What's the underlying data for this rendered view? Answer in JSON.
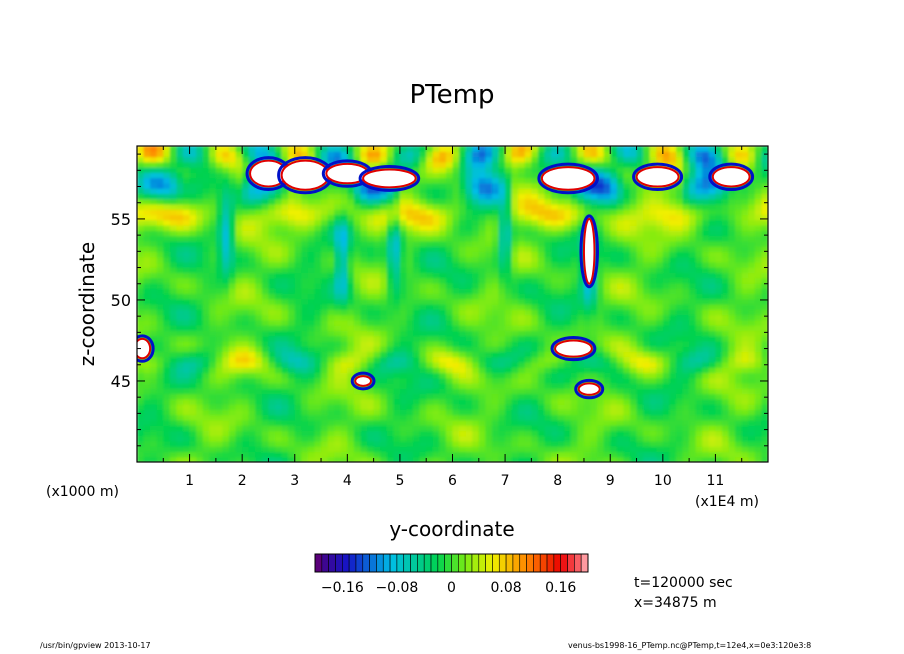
{
  "chart_data": {
    "type": "heatmap",
    "title": "PTemp",
    "xlabel": "y-coordinate",
    "ylabel": "z-coordinate",
    "x_unit_left": "(x1000 m)",
    "x_unit_right": "(x1E4 m)",
    "xlim": [
      0,
      12
    ],
    "ylim": [
      40,
      59.5
    ],
    "x_ticks": [
      "1",
      "2",
      "3",
      "4",
      "5",
      "6",
      "7",
      "8",
      "9",
      "10",
      "11"
    ],
    "y_ticks": [
      "45",
      "50",
      "55"
    ],
    "colorbar": {
      "range": [
        -0.2,
        0.2
      ],
      "tick_labels": [
        "−0.16",
        "−0.08",
        "0",
        "0.08",
        "0.16"
      ],
      "tick_values": [
        -0.16,
        -0.08,
        0,
        0.08,
        0.16
      ],
      "undershoot_color": "#5a007a",
      "overshoot_color": "#ff9aa0"
    },
    "features": [
      {
        "type": "white",
        "x": 2.5,
        "z": 57.8,
        "rx": 0.35,
        "rz": 0.8
      },
      {
        "type": "white",
        "x": 3.2,
        "z": 57.7,
        "rx": 0.45,
        "rz": 0.9
      },
      {
        "type": "white",
        "x": 4.0,
        "z": 57.8,
        "rx": 0.4,
        "rz": 0.6
      },
      {
        "type": "white",
        "x": 4.8,
        "z": 57.5,
        "rx": 0.5,
        "rz": 0.55
      },
      {
        "type": "white",
        "x": 8.2,
        "z": 57.5,
        "rx": 0.5,
        "rz": 0.7
      },
      {
        "type": "white",
        "x": 8.6,
        "z": 53.0,
        "rx": 0.1,
        "rz": 2.0
      },
      {
        "type": "white",
        "x": 8.3,
        "z": 47.0,
        "rx": 0.35,
        "rz": 0.5
      },
      {
        "type": "white",
        "x": 9.9,
        "z": 57.6,
        "rx": 0.4,
        "rz": 0.6
      },
      {
        "type": "white",
        "x": 11.3,
        "z": 57.6,
        "rx": 0.35,
        "rz": 0.6
      },
      {
        "type": "white",
        "x": 0.1,
        "z": 47.0,
        "rx": 0.15,
        "rz": 0.6
      },
      {
        "type": "white",
        "x": 4.3,
        "z": 45.0,
        "rx": 0.15,
        "rz": 0.3
      },
      {
        "type": "white",
        "x": 8.6,
        "z": 44.5,
        "rx": 0.2,
        "rz": 0.35
      }
    ]
  },
  "info": {
    "time": "t=120000 sec",
    "position": "x=34875 m"
  },
  "footer": {
    "left": "/usr/bin/gpview  2013-10-17",
    "right": "venus-bs1998-16_PTemp.nc@PTemp,t=12e4,x=0e3:120e3:8"
  }
}
